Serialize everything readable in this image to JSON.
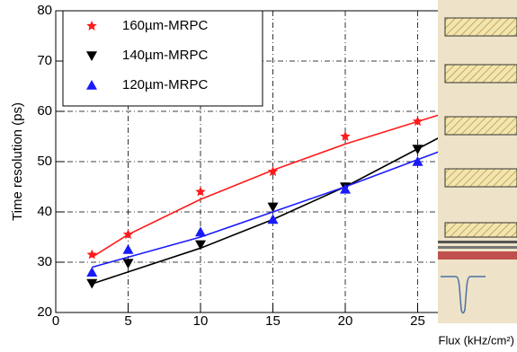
{
  "chart_data": {
    "type": "scatter",
    "y_label": "Time resolution (ps)",
    "x_label": "Flux (kHz/cm²)",
    "x": [
      2.5,
      5,
      10,
      15,
      20,
      25
    ],
    "xlim": [
      0,
      30
    ],
    "xticks": [
      0,
      5,
      10,
      15,
      20,
      25
    ],
    "ylim": [
      20,
      80
    ],
    "yticks": [
      20,
      30,
      40,
      50,
      60,
      70,
      80
    ],
    "grid": true,
    "legend": "upper left",
    "series": [
      {
        "name": "160µm-MRPC",
        "color": "#ff1a1a",
        "marker": "star",
        "values": [
          31.5,
          35.5,
          44,
          48,
          55,
          58
        ],
        "fit": {
          "x": [
            2.5,
            5,
            10,
            15,
            20,
            26.5
          ],
          "values": [
            31,
            35.5,
            42.5,
            48.3,
            53.5,
            59.3
          ]
        }
      },
      {
        "name": "140µm-MRPC",
        "color": "#000000",
        "marker": "triangle-down",
        "values": [
          25.8,
          29.8,
          33.5,
          41,
          45,
          52.5
        ],
        "fit": {
          "x": [
            2.5,
            10,
            15,
            20,
            26.5
          ],
          "values": [
            25.7,
            32.8,
            38.5,
            45,
            54.8
          ]
        }
      },
      {
        "name": "120µm-MRPC",
        "color": "#1a1aff",
        "marker": "triangle-up",
        "values": [
          28,
          32.5,
          36,
          38.5,
          44.5,
          50
        ],
        "fit": {
          "x": [
            2.5,
            5,
            10,
            15,
            20,
            26.5
          ],
          "values": [
            29,
            31,
            35,
            40,
            45,
            52
          ]
        }
      }
    ]
  }
}
